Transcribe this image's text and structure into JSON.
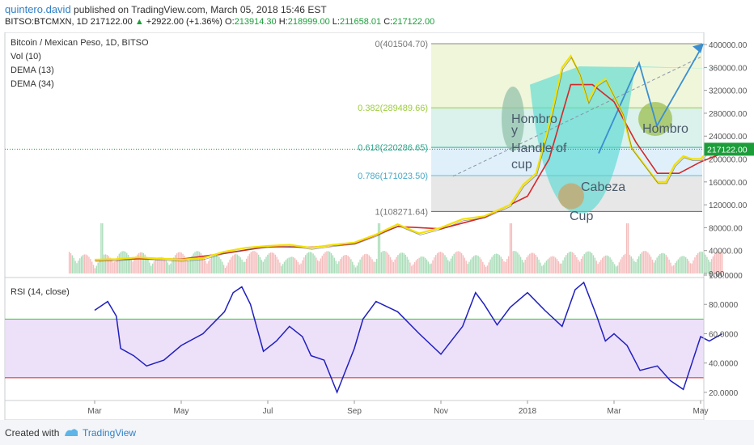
{
  "header": {
    "author": "quintero.david",
    "published": "published on TradingView.com, March 05, 2018 15:46 EST",
    "symbol": "BITSO:BTCMXN, 1D",
    "last": "217122.00",
    "change": "+2922.00 (+1.36%)",
    "o_label": "O:",
    "o": "213914.30",
    "h_label": "H:",
    "h": "218999.00",
    "l_label": "L:",
    "l": "211658.01",
    "c_label": "C:",
    "c": "217122.00"
  },
  "legend": {
    "title": "Bitcoin / Mexican Peso, 1D, BITSO",
    "vol": "Vol (10)",
    "dema13": "DEMA (13)",
    "dema34": "DEMA (34)"
  },
  "rsi_title": "RSI (14, close)",
  "footer": {
    "created": "Created with",
    "brand": "TradingView"
  },
  "colors": {
    "dema13": "#f2e100",
    "dema34": "#d62728",
    "rsi": "#1f1fbf",
    "rsi_upper": "#3ec43e",
    "rsi_lower": "#d62728",
    "rsi_band": "#e9d8f7",
    "price_tag": "#1b9e3a",
    "fib_blue": "#5dc0d8",
    "fib_green": "#9ccc3c"
  },
  "chart_data": [
    {
      "type": "line",
      "title": "Bitcoin / Mexican Peso, 1D, BITSO",
      "x_tick_labels": [
        "Mar",
        "May",
        "Jul",
        "Sep",
        "Nov",
        "2018",
        "Mar",
        "May"
      ],
      "y_tick_labels": [
        "400000.00",
        "360000.00",
        "320000.00",
        "280000.00",
        "240000.00",
        "200000.00",
        "160000.00",
        "120000.00",
        "80000.00",
        "40000.00",
        "0.00"
      ],
      "ylim": [
        0,
        410000
      ],
      "last_price_label": "217122.00",
      "series": [
        {
          "name": "DEMA (13)",
          "x_month": [
            0.0,
            0.5,
            1.0,
            1.5,
            2.0,
            2.5,
            3.0,
            3.5,
            4.0,
            4.5,
            5.0,
            5.5,
            6.0,
            6.5,
            7.0,
            7.5,
            8.0,
            8.5,
            9.0,
            9.3,
            9.6,
            9.9,
            10.2,
            10.5,
            10.8,
            11.0,
            11.2,
            11.4,
            11.6,
            11.8,
            12.0,
            12.2,
            12.4,
            12.7,
            13.0,
            13.2,
            13.4,
            13.6,
            13.8,
            14.0,
            14.2,
            14.5
          ],
          "y": [
            24000,
            25000,
            28000,
            26000,
            24000,
            27000,
            38000,
            45000,
            48000,
            50000,
            45000,
            50000,
            54000,
            68000,
            86000,
            70000,
            80000,
            95000,
            100000,
            110000,
            120000,
            155000,
            175000,
            260000,
            360000,
            380000,
            350000,
            300000,
            330000,
            340000,
            310000,
            280000,
            220000,
            190000,
            160000,
            160000,
            190000,
            205000,
            200000,
            200000,
            215000,
            217000
          ]
        },
        {
          "name": "DEMA (34)",
          "x_month": [
            0.0,
            1.0,
            2.0,
            3.0,
            4.0,
            5.0,
            6.0,
            7.0,
            8.0,
            9.0,
            10.0,
            10.5,
            11.0,
            11.5,
            12.0,
            12.5,
            13.0,
            13.5,
            14.0,
            14.5
          ],
          "y": [
            23000,
            26000,
            25000,
            35000,
            47000,
            46000,
            52000,
            82000,
            78000,
            98000,
            135000,
            200000,
            330000,
            330000,
            300000,
            230000,
            175000,
            175000,
            195000,
            210000
          ]
        }
      ],
      "fibonacci": [
        {
          "label": "0(401504.70)",
          "value": 401504.7
        },
        {
          "label": "0.382(289489.66)",
          "value": 289489.66
        },
        {
          "label": "0.618(220286.65)",
          "value": 220286.65
        },
        {
          "label": "0.786(171023.50)",
          "value": 171023.5
        },
        {
          "label": "1(108271.64)",
          "value": 108271.64
        }
      ],
      "annotations": [
        "Hombro",
        "y",
        "Handle of",
        "cup",
        "Cabeza",
        "Cup",
        "Hombro"
      ]
    },
    {
      "type": "line",
      "title": "RSI (14, close)",
      "y_tick_labels": [
        "100.0000",
        "80.0000",
        "60.0000",
        "40.0000",
        "20.0000"
      ],
      "ylim": [
        15,
        100
      ],
      "bands": [
        70,
        30
      ],
      "series": [
        {
          "name": "RSI (14, close)",
          "x_month": [
            0.0,
            0.3,
            0.5,
            0.6,
            0.9,
            1.2,
            1.6,
            2.0,
            2.5,
            3.0,
            3.2,
            3.4,
            3.6,
            3.9,
            4.2,
            4.5,
            4.8,
            5.0,
            5.3,
            5.6,
            6.0,
            6.2,
            6.5,
            7.0,
            7.5,
            8.0,
            8.5,
            8.8,
            9.0,
            9.3,
            9.6,
            10.0,
            10.4,
            10.8,
            11.1,
            11.3,
            11.6,
            11.8,
            12.0,
            12.3,
            12.6,
            13.0,
            13.3,
            13.6,
            13.8,
            14.0,
            14.2,
            14.5
          ],
          "y": [
            76,
            82,
            72,
            50,
            45,
            38,
            42,
            52,
            60,
            75,
            88,
            92,
            80,
            48,
            55,
            65,
            58,
            45,
            42,
            20,
            50,
            70,
            82,
            75,
            60,
            46,
            65,
            88,
            80,
            66,
            78,
            88,
            76,
            65,
            90,
            95,
            72,
            55,
            60,
            52,
            35,
            38,
            28,
            22,
            40,
            58,
            55,
            60
          ]
        }
      ]
    }
  ]
}
